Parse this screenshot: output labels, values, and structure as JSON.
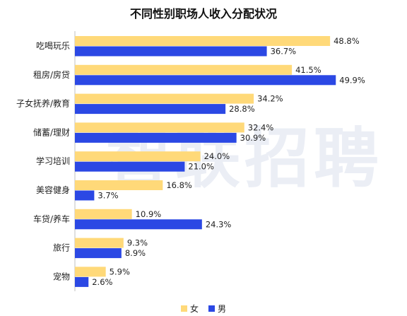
{
  "title": "不同性别职场人收入分配状况",
  "watermark": "智联招聘",
  "chart_data": {
    "type": "bar",
    "orientation": "horizontal",
    "title": "不同性别职场人收入分配状况",
    "categories": [
      "吃喝玩乐",
      "租房/房贷",
      "子女抚养/教育",
      "储蓄/理财",
      "学习培训",
      "美容健身",
      "车贷/养车",
      "旅行",
      "宠物"
    ],
    "series": [
      {
        "name": "女",
        "color": "#FFD979",
        "values": [
          48.8,
          41.5,
          34.2,
          32.4,
          24.0,
          16.8,
          10.9,
          9.3,
          5.9
        ],
        "labels": [
          "48.8%",
          "41.5%",
          "34.2%",
          "32.4%",
          "24.0%",
          "16.8%",
          "10.9%",
          "9.3%",
          "5.9%"
        ]
      },
      {
        "name": "男",
        "color": "#2B48E4",
        "values": [
          36.7,
          49.9,
          28.8,
          30.9,
          21.0,
          3.7,
          24.3,
          8.9,
          2.6
        ],
        "labels": [
          "36.7%",
          "49.9%",
          "28.8%",
          "30.9%",
          "21.0%",
          "3.7%",
          "24.3%",
          "8.9%",
          "2.6%"
        ]
      }
    ],
    "xlim": [
      0,
      50
    ],
    "grid": false,
    "legend": "bottom-center"
  }
}
